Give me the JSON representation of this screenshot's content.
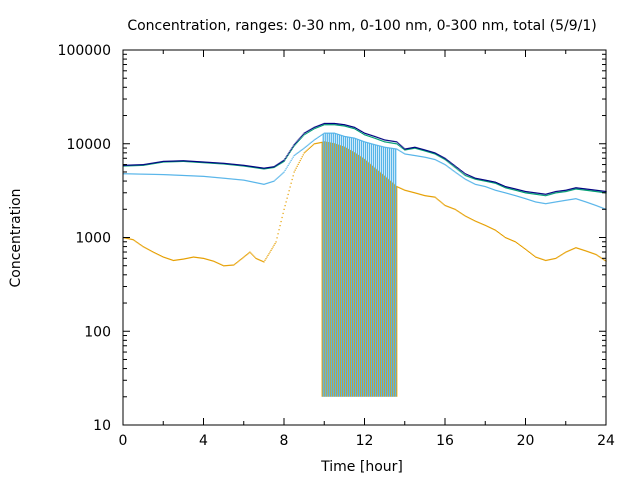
{
  "chart_data": {
    "type": "scatter",
    "title": "Concentration, ranges: 0-30 nm, 0-100 nm, 0-300 nm, total (5/9/1)",
    "xlabel": "Time [hour]",
    "ylabel": "Concentration",
    "xlim": [
      0,
      24
    ],
    "ylim": [
      10,
      100000
    ],
    "yscale": "log",
    "grid": false,
    "legend": "none",
    "x_ticks": [
      "0",
      "4",
      "8",
      "12",
      "16",
      "20",
      "24"
    ],
    "y_ticks": [
      "10",
      "100",
      "1000",
      "10000",
      "100000"
    ],
    "spike_window": [
      9.9,
      13.6
    ],
    "spike_floor": 20,
    "series": [
      {
        "color": "#e69f00",
        "points": [
          [
            0,
            1000
          ],
          [
            0.5,
            950
          ],
          [
            1,
            800
          ],
          [
            1.5,
            700
          ],
          [
            2,
            620
          ],
          [
            2.5,
            570
          ],
          [
            3,
            590
          ],
          [
            3.5,
            620
          ],
          [
            4,
            600
          ],
          [
            4.5,
            560
          ],
          [
            5,
            500
          ],
          [
            5.5,
            510
          ],
          [
            6,
            620
          ],
          [
            6.3,
            700
          ],
          [
            6.6,
            600
          ],
          [
            7,
            550
          ],
          [
            7.3,
            700
          ],
          [
            7.6,
            900
          ],
          [
            8,
            2000
          ],
          [
            8.5,
            5000
          ],
          [
            9,
            8000
          ],
          [
            9.5,
            10000
          ],
          [
            10,
            10500
          ],
          [
            10.5,
            10000
          ],
          [
            11,
            9200
          ],
          [
            11.5,
            8000
          ],
          [
            12,
            6800
          ],
          [
            12.5,
            5500
          ],
          [
            13,
            4500
          ],
          [
            13.6,
            3500
          ],
          [
            14,
            3200
          ],
          [
            14.5,
            3000
          ],
          [
            15,
            2800
          ],
          [
            15.5,
            2700
          ],
          [
            16,
            2200
          ],
          [
            16.5,
            2000
          ],
          [
            17,
            1700
          ],
          [
            17.5,
            1500
          ],
          [
            18,
            1350
          ],
          [
            18.5,
            1200
          ],
          [
            19,
            1000
          ],
          [
            19.5,
            900
          ],
          [
            20,
            750
          ],
          [
            20.5,
            620
          ],
          [
            21,
            570
          ],
          [
            21.5,
            600
          ],
          [
            22,
            700
          ],
          [
            22.5,
            780
          ],
          [
            23,
            720
          ],
          [
            23.5,
            660
          ],
          [
            24,
            560
          ]
        ]
      },
      {
        "color": "#56b4e9",
        "points": [
          [
            0,
            4800
          ],
          [
            1,
            4750
          ],
          [
            2,
            4700
          ],
          [
            3,
            4600
          ],
          [
            4,
            4500
          ],
          [
            5,
            4300
          ],
          [
            6,
            4100
          ],
          [
            7,
            3700
          ],
          [
            7.5,
            4000
          ],
          [
            8,
            5000
          ],
          [
            8.5,
            7500
          ],
          [
            9,
            9000
          ],
          [
            9.5,
            11000
          ],
          [
            10,
            13000
          ],
          [
            10.5,
            13000
          ],
          [
            11,
            12000
          ],
          [
            11.5,
            11500
          ],
          [
            12,
            10500
          ],
          [
            12.5,
            9800
          ],
          [
            13,
            9200
          ],
          [
            13.6,
            8800
          ],
          [
            14,
            7800
          ],
          [
            14.5,
            7500
          ],
          [
            15,
            7200
          ],
          [
            15.5,
            6800
          ],
          [
            16,
            6000
          ],
          [
            16.5,
            5000
          ],
          [
            17,
            4200
          ],
          [
            17.5,
            3700
          ],
          [
            18,
            3500
          ],
          [
            18.5,
            3200
          ],
          [
            19,
            3000
          ],
          [
            19.5,
            2800
          ],
          [
            20,
            2600
          ],
          [
            20.5,
            2400
          ],
          [
            21,
            2300
          ],
          [
            21.5,
            2400
          ],
          [
            22,
            2500
          ],
          [
            22.5,
            2600
          ],
          [
            23,
            2400
          ],
          [
            23.5,
            2200
          ],
          [
            24,
            2000
          ]
        ]
      },
      {
        "color": "#009e73",
        "points": [
          [
            0,
            5800
          ],
          [
            1,
            5900
          ],
          [
            2,
            6400
          ],
          [
            3,
            6500
          ],
          [
            4,
            6300
          ],
          [
            5,
            6100
          ],
          [
            6,
            5800
          ],
          [
            7,
            5400
          ],
          [
            7.5,
            5600
          ],
          [
            8,
            6500
          ],
          [
            8.5,
            9500
          ],
          [
            9,
            12500
          ],
          [
            9.5,
            14500
          ],
          [
            10,
            16000
          ],
          [
            10.5,
            16000
          ],
          [
            11,
            15500
          ],
          [
            11.5,
            14500
          ],
          [
            12,
            12500
          ],
          [
            12.5,
            11500
          ],
          [
            13,
            10500
          ],
          [
            13.6,
            10000
          ],
          [
            14,
            8600
          ],
          [
            14.5,
            9000
          ],
          [
            15,
            8400
          ],
          [
            15.5,
            7800
          ],
          [
            16,
            6800
          ],
          [
            16.5,
            5600
          ],
          [
            17,
            4600
          ],
          [
            17.5,
            4200
          ],
          [
            18,
            4000
          ],
          [
            18.5,
            3800
          ],
          [
            19,
            3400
          ],
          [
            19.5,
            3200
          ],
          [
            20,
            3000
          ],
          [
            20.5,
            2900
          ],
          [
            21,
            2800
          ],
          [
            21.5,
            3000
          ],
          [
            22,
            3100
          ],
          [
            22.5,
            3300
          ],
          [
            23,
            3200
          ],
          [
            23.5,
            3100
          ],
          [
            24,
            3000
          ]
        ]
      },
      {
        "color": "#000080",
        "points": [
          [
            0,
            5900
          ],
          [
            1,
            6000
          ],
          [
            2,
            6500
          ],
          [
            3,
            6600
          ],
          [
            4,
            6400
          ],
          [
            5,
            6200
          ],
          [
            6,
            5900
          ],
          [
            7,
            5500
          ],
          [
            7.5,
            5700
          ],
          [
            8,
            6700
          ],
          [
            8.5,
            9800
          ],
          [
            9,
            13000
          ],
          [
            9.5,
            15000
          ],
          [
            10,
            16500
          ],
          [
            10.5,
            16500
          ],
          [
            11,
            16000
          ],
          [
            11.5,
            15000
          ],
          [
            12,
            13000
          ],
          [
            12.5,
            12000
          ],
          [
            13,
            11000
          ],
          [
            13.6,
            10500
          ],
          [
            14,
            8800
          ],
          [
            14.5,
            9200
          ],
          [
            15,
            8600
          ],
          [
            15.5,
            8000
          ],
          [
            16,
            7000
          ],
          [
            16.5,
            5800
          ],
          [
            17,
            4800
          ],
          [
            17.5,
            4300
          ],
          [
            18,
            4100
          ],
          [
            18.5,
            3900
          ],
          [
            19,
            3500
          ],
          [
            19.5,
            3300
          ],
          [
            20,
            3100
          ],
          [
            20.5,
            3000
          ],
          [
            21,
            2900
          ],
          [
            21.5,
            3100
          ],
          [
            22,
            3200
          ],
          [
            22.5,
            3400
          ],
          [
            23,
            3300
          ],
          [
            23.5,
            3200
          ],
          [
            24,
            3100
          ]
        ]
      }
    ]
  }
}
